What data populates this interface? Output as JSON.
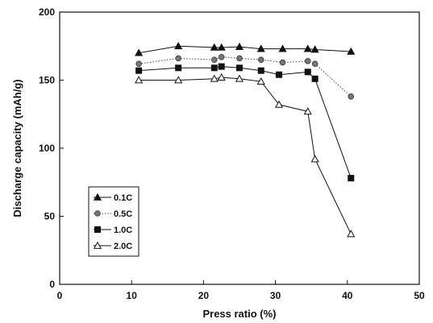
{
  "chart_data": {
    "type": "line",
    "title": "",
    "xlabel": "Press ratio (%)",
    "ylabel": "Discharge capacity (mAh/g)",
    "xlim": [
      0,
      50
    ],
    "ylim": [
      0,
      200
    ],
    "xticks": [
      "0",
      "10",
      "20",
      "30",
      "40",
      "50"
    ],
    "yticks": [
      "0",
      "50",
      "100",
      "150",
      "200"
    ],
    "grid": false,
    "legend_position": "lower-left",
    "series": [
      {
        "name": "0.1C",
        "marker": "filled-triangle",
        "dash": "solid",
        "color": "#111111",
        "points": [
          [
            11,
            170
          ],
          [
            16.5,
            175
          ],
          [
            21.5,
            174
          ],
          [
            22.5,
            174
          ],
          [
            25,
            174.5
          ],
          [
            28,
            173
          ],
          [
            31,
            173
          ],
          [
            34.5,
            173
          ],
          [
            35.5,
            172.5
          ],
          [
            40.5,
            171
          ]
        ]
      },
      {
        "name": "0.5C",
        "marker": "filled-circle",
        "dash": "dotted",
        "color": "#444444",
        "points": [
          [
            11,
            162
          ],
          [
            16.5,
            166
          ],
          [
            21.5,
            165
          ],
          [
            22.5,
            167
          ],
          [
            25,
            166
          ],
          [
            28,
            165
          ],
          [
            31,
            163
          ],
          [
            34.5,
            164
          ],
          [
            35.5,
            162
          ],
          [
            40.5,
            138
          ]
        ]
      },
      {
        "name": "1.0C",
        "marker": "filled-square",
        "dash": "solid",
        "color": "#111111",
        "points": [
          [
            11,
            157
          ],
          [
            16.5,
            159
          ],
          [
            21.5,
            159
          ],
          [
            22.5,
            160
          ],
          [
            25,
            159
          ],
          [
            28,
            157
          ],
          [
            30.5,
            154
          ],
          [
            34.5,
            156
          ],
          [
            35.5,
            151
          ],
          [
            40.5,
            78
          ]
        ]
      },
      {
        "name": "2.0C",
        "marker": "open-triangle",
        "dash": "solid",
        "color": "#111111",
        "points": [
          [
            11,
            150
          ],
          [
            16.5,
            150
          ],
          [
            21.5,
            151
          ],
          [
            22.5,
            152
          ],
          [
            25,
            151
          ],
          [
            28,
            149
          ],
          [
            30.5,
            132
          ],
          [
            34.5,
            127
          ],
          [
            35.5,
            92
          ],
          [
            40.5,
            37
          ]
        ]
      }
    ]
  }
}
